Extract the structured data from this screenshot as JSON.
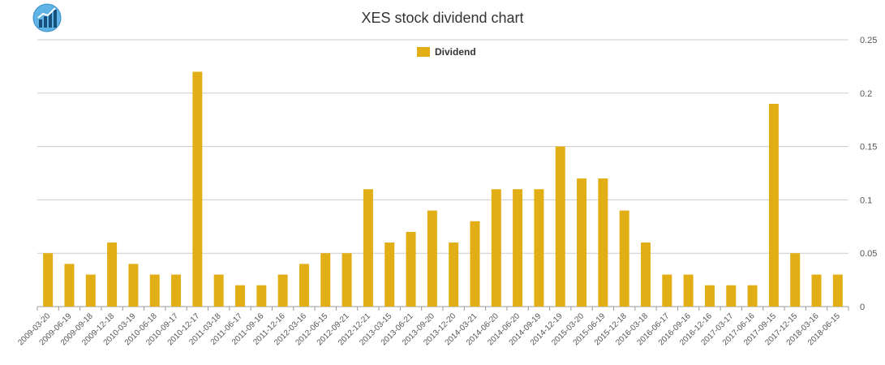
{
  "chart_data": {
    "type": "bar",
    "title": "XES stock dividend chart",
    "xlabel": "",
    "ylabel": "",
    "ylim": [
      0,
      0.25
    ],
    "y_ticks": [
      "0",
      "0.05",
      "0.1",
      "0.15",
      "0.2",
      "0.25"
    ],
    "y_axis_side": "right",
    "grid": true,
    "legend_position": "top-center",
    "bar_color": "#e2ae15",
    "categories": [
      "2009-03-20",
      "2009-06-19",
      "2009-09-18",
      "2009-12-18",
      "2010-03-19",
      "2010-06-18",
      "2010-09-17",
      "2010-12-17",
      "2011-03-18",
      "2011-06-17",
      "2011-09-16",
      "2011-12-16",
      "2012-03-16",
      "2012-06-15",
      "2012-09-21",
      "2012-12-21",
      "2013-03-15",
      "2013-06-21",
      "2013-09-20",
      "2013-12-20",
      "2014-03-21",
      "2014-06-20",
      "2014-06-20",
      "2014-09-19",
      "2014-12-19",
      "2015-03-20",
      "2015-06-19",
      "2015-12-18",
      "2016-03-18",
      "2016-06-17",
      "2016-09-16",
      "2016-12-16",
      "2017-03-17",
      "2017-06-16",
      "2017-09-15",
      "2017-12-15",
      "2018-03-16",
      "2018-06-15"
    ],
    "series": [
      {
        "name": "Dividend",
        "values": [
          0.05,
          0.04,
          0.03,
          0.06,
          0.04,
          0.03,
          0.03,
          0.22,
          0.03,
          0.02,
          0.02,
          0.03,
          0.04,
          0.05,
          0.05,
          0.11,
          0.06,
          0.07,
          0.09,
          0.06,
          0.08,
          0.11,
          0.11,
          0.11,
          0.15,
          0.12,
          0.12,
          0.09,
          0.06,
          0.03,
          0.03,
          0.02,
          0.02,
          0.02,
          0.19,
          0.05,
          0.03,
          0.03
        ]
      }
    ]
  },
  "logo": {
    "icon": "bar-chart-logo-icon",
    "colors": [
      "#4aa3df",
      "#1a5b8a"
    ]
  }
}
